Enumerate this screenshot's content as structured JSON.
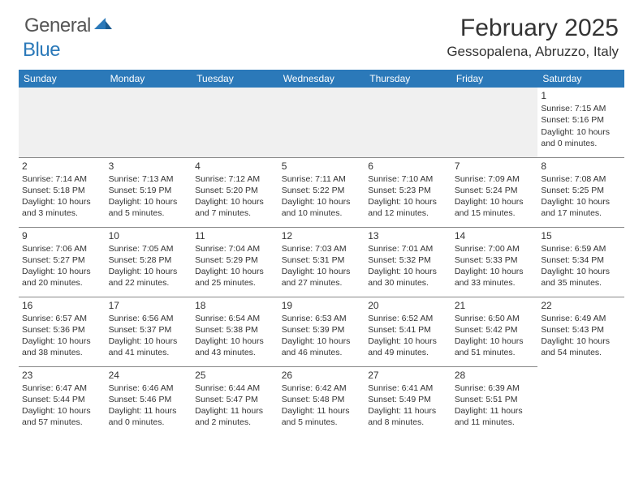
{
  "logo": {
    "text1": "General",
    "text2": "Blue"
  },
  "title": "February 2025",
  "location": "Gessopalena, Abruzzo, Italy",
  "day_headers": [
    "Sunday",
    "Monday",
    "Tuesday",
    "Wednesday",
    "Thursday",
    "Friday",
    "Saturday"
  ],
  "colors": {
    "header_bg": "#2b79b9",
    "header_fg": "#ffffff",
    "text": "#333333",
    "blank_bg": "#f0f0f0",
    "border": "#888888",
    "logo_gray": "#555555",
    "logo_blue": "#2b79b9"
  },
  "weeks": [
    [
      {
        "blank": true
      },
      {
        "blank": true
      },
      {
        "blank": true
      },
      {
        "blank": true
      },
      {
        "blank": true
      },
      {
        "blank": true
      },
      {
        "day": "1",
        "sunrise": "Sunrise: 7:15 AM",
        "sunset": "Sunset: 5:16 PM",
        "daylight": "Daylight: 10 hours and 0 minutes."
      }
    ],
    [
      {
        "day": "2",
        "sunrise": "Sunrise: 7:14 AM",
        "sunset": "Sunset: 5:18 PM",
        "daylight": "Daylight: 10 hours and 3 minutes."
      },
      {
        "day": "3",
        "sunrise": "Sunrise: 7:13 AM",
        "sunset": "Sunset: 5:19 PM",
        "daylight": "Daylight: 10 hours and 5 minutes."
      },
      {
        "day": "4",
        "sunrise": "Sunrise: 7:12 AM",
        "sunset": "Sunset: 5:20 PM",
        "daylight": "Daylight: 10 hours and 7 minutes."
      },
      {
        "day": "5",
        "sunrise": "Sunrise: 7:11 AM",
        "sunset": "Sunset: 5:22 PM",
        "daylight": "Daylight: 10 hours and 10 minutes."
      },
      {
        "day": "6",
        "sunrise": "Sunrise: 7:10 AM",
        "sunset": "Sunset: 5:23 PM",
        "daylight": "Daylight: 10 hours and 12 minutes."
      },
      {
        "day": "7",
        "sunrise": "Sunrise: 7:09 AM",
        "sunset": "Sunset: 5:24 PM",
        "daylight": "Daylight: 10 hours and 15 minutes."
      },
      {
        "day": "8",
        "sunrise": "Sunrise: 7:08 AM",
        "sunset": "Sunset: 5:25 PM",
        "daylight": "Daylight: 10 hours and 17 minutes."
      }
    ],
    [
      {
        "day": "9",
        "sunrise": "Sunrise: 7:06 AM",
        "sunset": "Sunset: 5:27 PM",
        "daylight": "Daylight: 10 hours and 20 minutes."
      },
      {
        "day": "10",
        "sunrise": "Sunrise: 7:05 AM",
        "sunset": "Sunset: 5:28 PM",
        "daylight": "Daylight: 10 hours and 22 minutes."
      },
      {
        "day": "11",
        "sunrise": "Sunrise: 7:04 AM",
        "sunset": "Sunset: 5:29 PM",
        "daylight": "Daylight: 10 hours and 25 minutes."
      },
      {
        "day": "12",
        "sunrise": "Sunrise: 7:03 AM",
        "sunset": "Sunset: 5:31 PM",
        "daylight": "Daylight: 10 hours and 27 minutes."
      },
      {
        "day": "13",
        "sunrise": "Sunrise: 7:01 AM",
        "sunset": "Sunset: 5:32 PM",
        "daylight": "Daylight: 10 hours and 30 minutes."
      },
      {
        "day": "14",
        "sunrise": "Sunrise: 7:00 AM",
        "sunset": "Sunset: 5:33 PM",
        "daylight": "Daylight: 10 hours and 33 minutes."
      },
      {
        "day": "15",
        "sunrise": "Sunrise: 6:59 AM",
        "sunset": "Sunset: 5:34 PM",
        "daylight": "Daylight: 10 hours and 35 minutes."
      }
    ],
    [
      {
        "day": "16",
        "sunrise": "Sunrise: 6:57 AM",
        "sunset": "Sunset: 5:36 PM",
        "daylight": "Daylight: 10 hours and 38 minutes."
      },
      {
        "day": "17",
        "sunrise": "Sunrise: 6:56 AM",
        "sunset": "Sunset: 5:37 PM",
        "daylight": "Daylight: 10 hours and 41 minutes."
      },
      {
        "day": "18",
        "sunrise": "Sunrise: 6:54 AM",
        "sunset": "Sunset: 5:38 PM",
        "daylight": "Daylight: 10 hours and 43 minutes."
      },
      {
        "day": "19",
        "sunrise": "Sunrise: 6:53 AM",
        "sunset": "Sunset: 5:39 PM",
        "daylight": "Daylight: 10 hours and 46 minutes."
      },
      {
        "day": "20",
        "sunrise": "Sunrise: 6:52 AM",
        "sunset": "Sunset: 5:41 PM",
        "daylight": "Daylight: 10 hours and 49 minutes."
      },
      {
        "day": "21",
        "sunrise": "Sunrise: 6:50 AM",
        "sunset": "Sunset: 5:42 PM",
        "daylight": "Daylight: 10 hours and 51 minutes."
      },
      {
        "day": "22",
        "sunrise": "Sunrise: 6:49 AM",
        "sunset": "Sunset: 5:43 PM",
        "daylight": "Daylight: 10 hours and 54 minutes."
      }
    ],
    [
      {
        "day": "23",
        "sunrise": "Sunrise: 6:47 AM",
        "sunset": "Sunset: 5:44 PM",
        "daylight": "Daylight: 10 hours and 57 minutes."
      },
      {
        "day": "24",
        "sunrise": "Sunrise: 6:46 AM",
        "sunset": "Sunset: 5:46 PM",
        "daylight": "Daylight: 11 hours and 0 minutes."
      },
      {
        "day": "25",
        "sunrise": "Sunrise: 6:44 AM",
        "sunset": "Sunset: 5:47 PM",
        "daylight": "Daylight: 11 hours and 2 minutes."
      },
      {
        "day": "26",
        "sunrise": "Sunrise: 6:42 AM",
        "sunset": "Sunset: 5:48 PM",
        "daylight": "Daylight: 11 hours and 5 minutes."
      },
      {
        "day": "27",
        "sunrise": "Sunrise: 6:41 AM",
        "sunset": "Sunset: 5:49 PM",
        "daylight": "Daylight: 11 hours and 8 minutes."
      },
      {
        "day": "28",
        "sunrise": "Sunrise: 6:39 AM",
        "sunset": "Sunset: 5:51 PM",
        "daylight": "Daylight: 11 hours and 11 minutes."
      },
      {
        "blank": true,
        "trailing": true
      }
    ]
  ]
}
